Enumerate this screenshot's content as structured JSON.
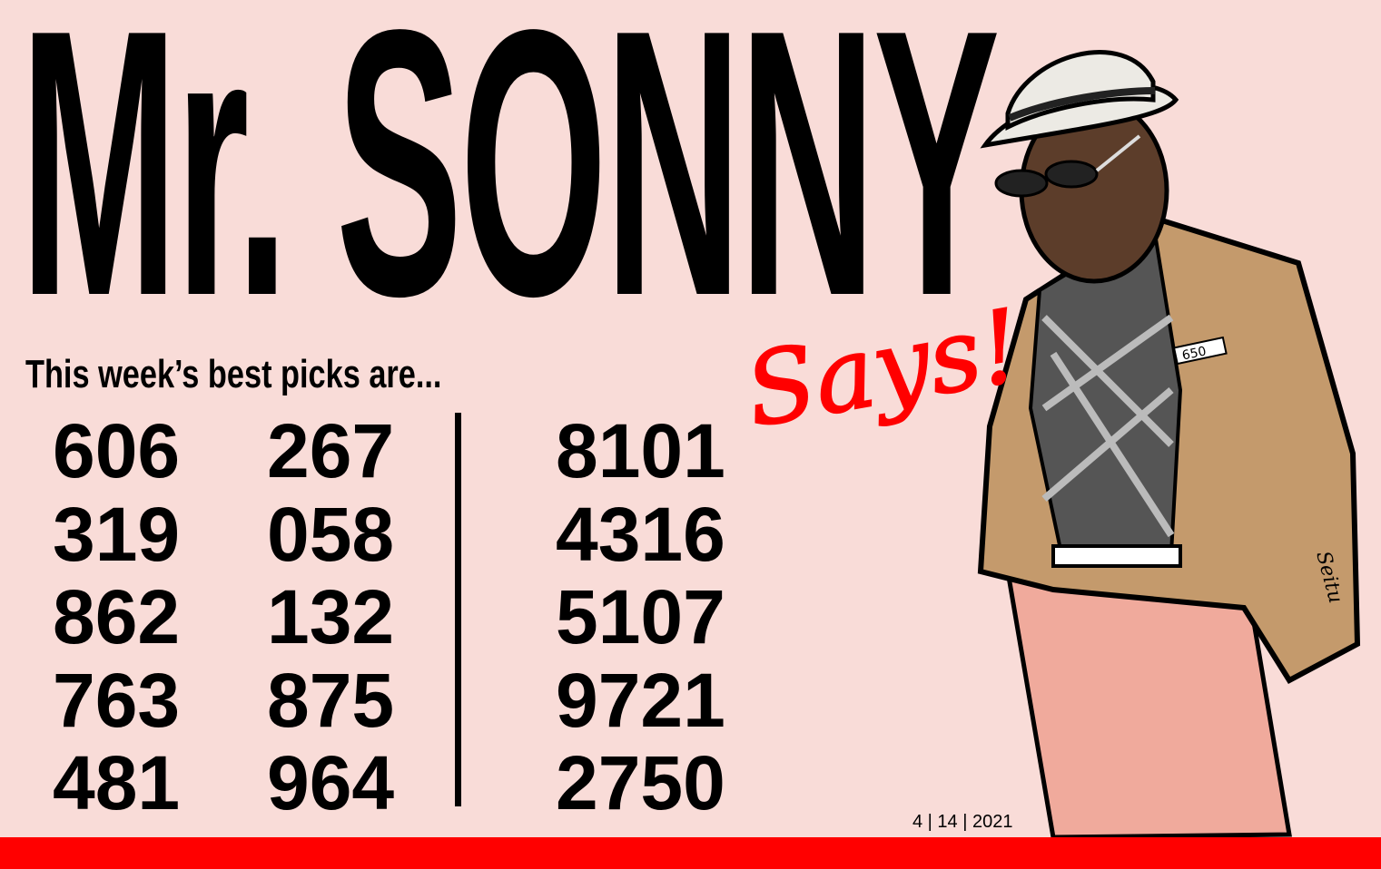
{
  "title": "Mr. SONNY",
  "script_word": "Says!",
  "subtitle": "This week’s best picks are...",
  "picks": {
    "three_digit_col1": [
      "606",
      "319",
      "862",
      "763",
      "481"
    ],
    "three_digit_col2": [
      "267",
      "058",
      "132",
      "875",
      "964"
    ],
    "four_digit": [
      "8101",
      "4316",
      "5107",
      "9721",
      "2750"
    ]
  },
  "date": "4 | 14 | 2021",
  "pocket_number": "650",
  "signature": "Seitu",
  "colors": {
    "background": "#f9dcd8",
    "accent": "#ff0000",
    "jacket": "#c49a6c",
    "pants": "#f0aa9c",
    "skin": "#5c3d2a"
  }
}
